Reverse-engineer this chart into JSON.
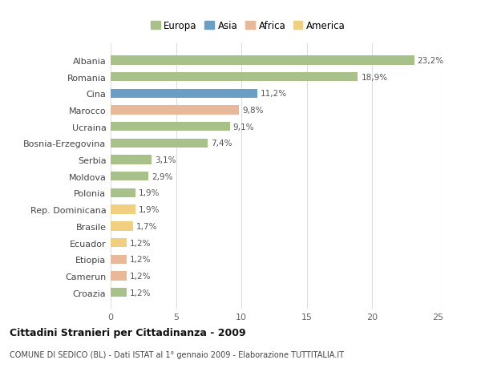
{
  "categories": [
    "Albania",
    "Romania",
    "Cina",
    "Marocco",
    "Ucraina",
    "Bosnia-Erzegovina",
    "Serbia",
    "Moldova",
    "Polonia",
    "Rep. Dominicana",
    "Brasile",
    "Ecuador",
    "Etiopia",
    "Camerun",
    "Croazia"
  ],
  "values": [
    23.2,
    18.9,
    11.2,
    9.8,
    9.1,
    7.4,
    3.1,
    2.9,
    1.9,
    1.9,
    1.7,
    1.2,
    1.2,
    1.2,
    1.2
  ],
  "labels": [
    "23,2%",
    "18,9%",
    "11,2%",
    "9,8%",
    "9,1%",
    "7,4%",
    "3,1%",
    "2,9%",
    "1,9%",
    "1,9%",
    "1,7%",
    "1,2%",
    "1,2%",
    "1,2%",
    "1,2%"
  ],
  "continents": [
    "Europa",
    "Europa",
    "Asia",
    "Africa",
    "Europa",
    "Europa",
    "Europa",
    "Europa",
    "Europa",
    "America",
    "America",
    "America",
    "Africa",
    "Africa",
    "Europa"
  ],
  "colors": {
    "Europa": "#a8c08a",
    "Asia": "#6a9ec4",
    "Africa": "#e8b899",
    "America": "#f0d080"
  },
  "title": "Cittadini Stranieri per Cittadinanza - 2009",
  "subtitle": "COMUNE DI SEDICO (BL) - Dati ISTAT al 1° gennaio 2009 - Elaborazione TUTTITALIA.IT",
  "xlim": [
    0,
    25
  ],
  "xticks": [
    0,
    5,
    10,
    15,
    20,
    25
  ],
  "background_color": "#ffffff",
  "bar_height": 0.55,
  "grid_color": "#dddddd"
}
